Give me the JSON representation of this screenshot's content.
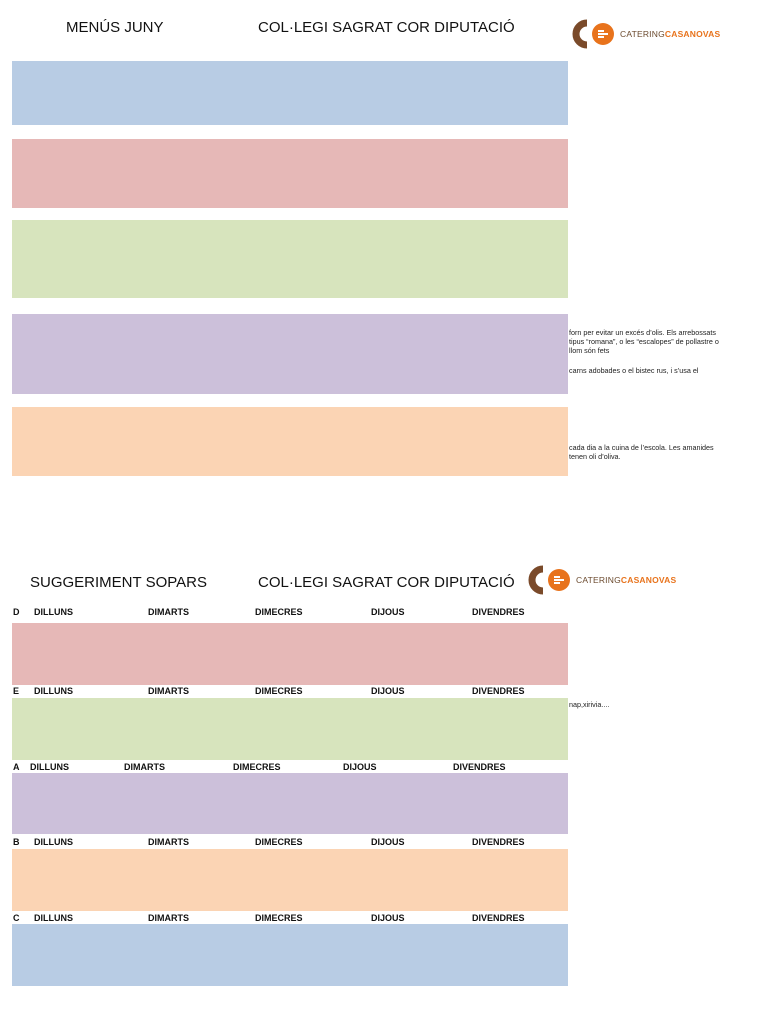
{
  "menu": {
    "title_left": "MENÚS JUNY",
    "title_center": "COL·LEGI SAGRAT COR DIPUTACIÓ",
    "logo": {
      "part1": "CATERING",
      "part2": "CASANOVAS",
      "brand_orange": "#e8731c",
      "brand_brown": "#6b4a2e"
    },
    "notes": [
      "forn per evitar un excés d’olis. Els arrebossats tipus “romana”, o les “escalopes” de pollastre o llom són fets",
      "carns adobades o el bistec rus, i s’usa el",
      "cada dia a la cuina de l’escola. Les amanides tenen oli d’oliva."
    ]
  },
  "sopars": {
    "title_left": "SUGGERIMENT SOPARS",
    "title_center": "COL·LEGI SAGRAT COR DIPUTACIÓ",
    "logo": {
      "part1": "CATERING",
      "part2": "CASANOVAS"
    },
    "note": "nap,xirivia....",
    "rows": [
      {
        "letter": "D",
        "days": [
          "DILLUNS",
          "DIMARTS",
          "DIMECRES",
          "DIJOUS",
          "DIVENDRES"
        ]
      },
      {
        "letter": "E",
        "days": [
          "DILLUNS",
          "DIMARTS",
          "DIMECRES",
          "DIJOUS",
          "DIVENDRES"
        ]
      },
      {
        "letter": "A",
        "days": [
          "DILLUNS",
          "DIMARTS",
          "DIMECRES",
          "DIJOUS",
          "DIVENDRES"
        ]
      },
      {
        "letter": "B",
        "days": [
          "DILLUNS",
          "DIMARTS",
          "DIMECRES",
          "DIJOUS",
          "DIVENDRES"
        ]
      },
      {
        "letter": "C",
        "days": [
          "DILLUNS",
          "DIMARTS",
          "DIMECRES",
          "DIJOUS",
          "DIVENDRES"
        ]
      }
    ]
  },
  "colors": {
    "blue": "#b8cce4",
    "red": "#e6b8b7",
    "green": "#d7e4bd",
    "purple": "#ccc0da",
    "orange": "#fbd4b4"
  }
}
